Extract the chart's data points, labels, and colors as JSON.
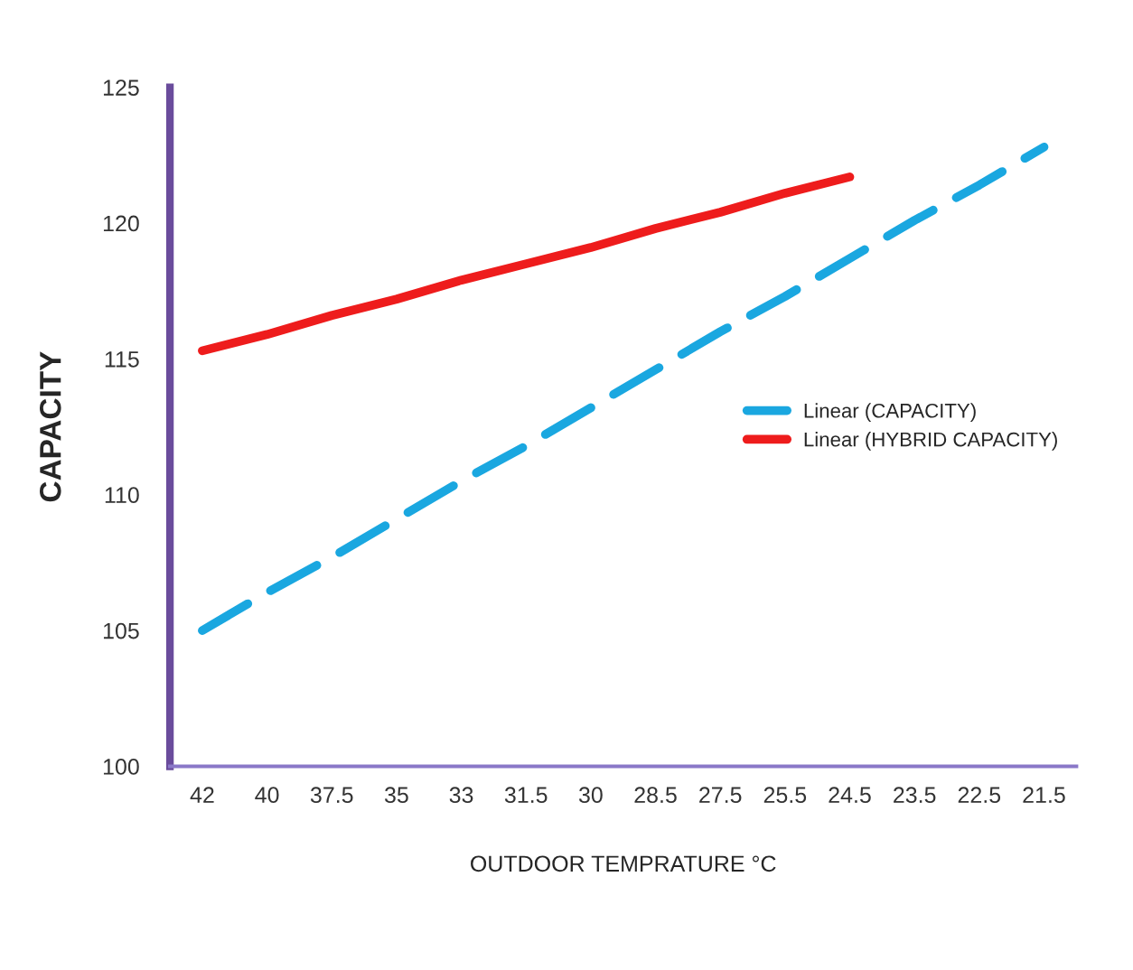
{
  "chart_data": {
    "type": "line",
    "xlabel": "OUTDOOR TEMPRATURE °C",
    "ylabel": "CAPACITY",
    "categories": [
      "42",
      "40",
      "37.5",
      "35",
      "33",
      "31.5",
      "30",
      "28.5",
      "27.5",
      "25.5",
      "24.5",
      "23.5",
      "22.5",
      "21.5"
    ],
    "series": [
      {
        "name": "Linear (CAPACITY)",
        "color": "#1aa7e0",
        "line_style": "dashed",
        "values": [
          105.0,
          106.4,
          107.7,
          109.1,
          110.5,
          111.8,
          113.2,
          114.6,
          116.0,
          117.3,
          118.7,
          120.1,
          121.4,
          122.8
        ]
      },
      {
        "name": "Linear (HYBRID CAPACITY)",
        "color": "#ee1c1c",
        "line_style": "solid",
        "values": [
          115.3,
          115.9,
          116.6,
          117.2,
          117.9,
          118.5,
          119.1,
          119.8,
          120.4,
          121.1,
          121.7,
          null,
          null,
          null
        ]
      }
    ],
    "ylim": [
      100,
      125
    ],
    "yticks": [
      100,
      105,
      110,
      115,
      120,
      125
    ],
    "grid": false,
    "legend": "center right"
  }
}
